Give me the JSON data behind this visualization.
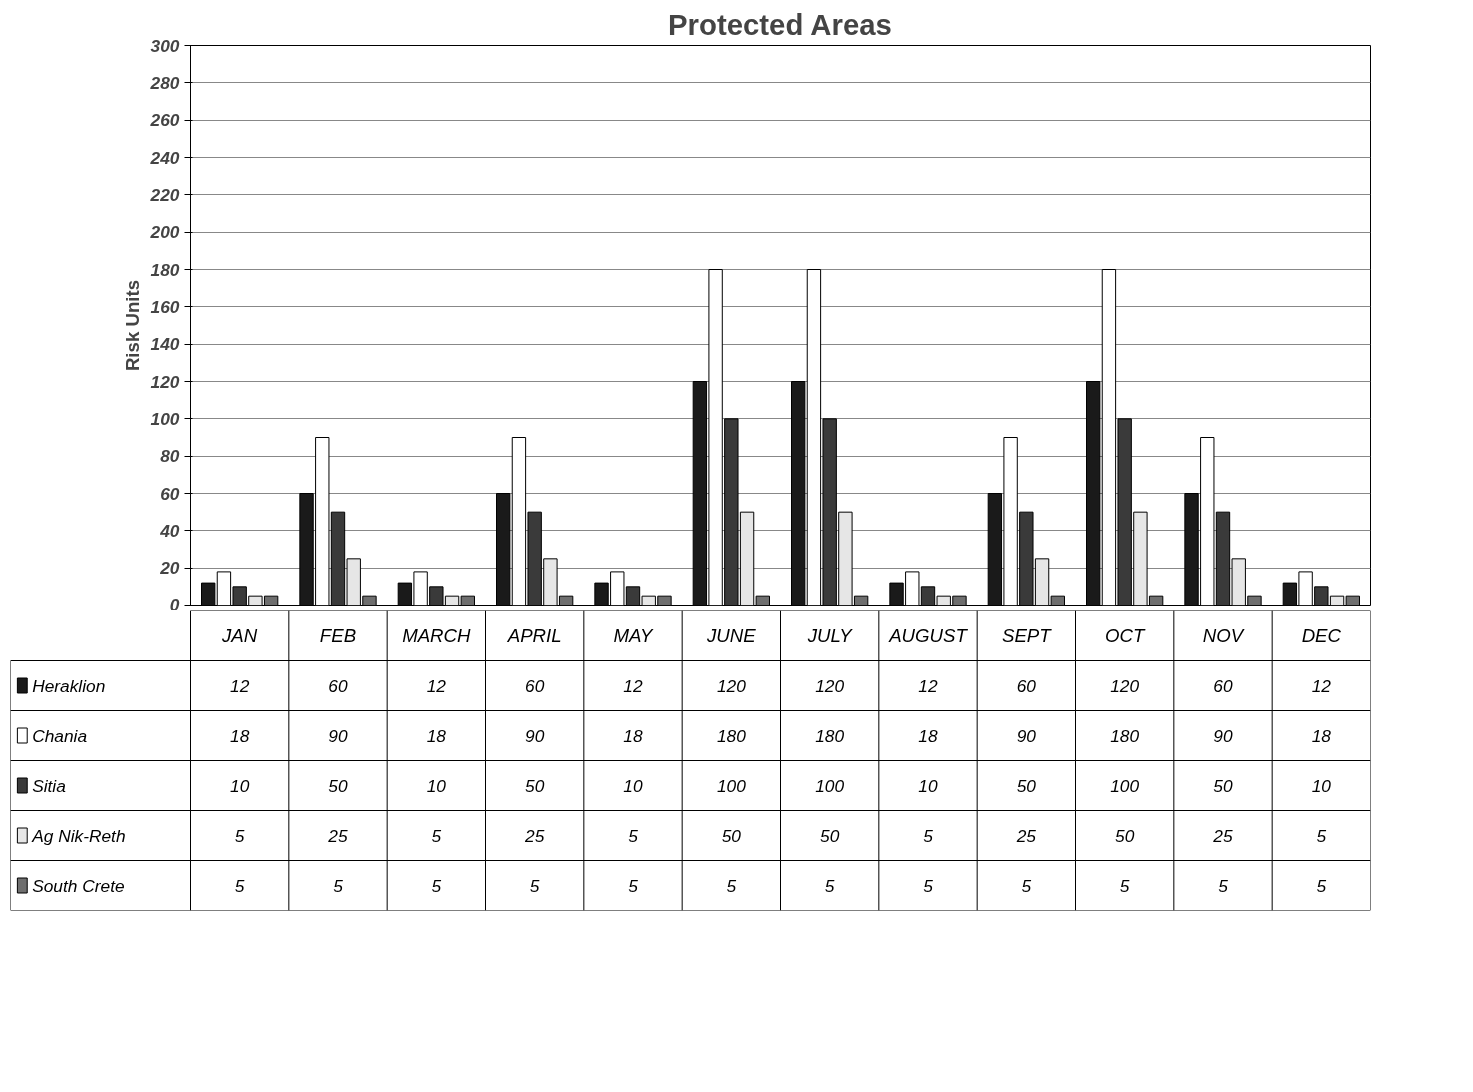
{
  "chart_data": {
    "type": "bar",
    "title": "Protected Areas",
    "ylabel": "Risk Units",
    "categories": [
      "JAN",
      "FEB",
      "MARCH",
      "APRIL",
      "MAY",
      "JUNE",
      "JULY",
      "AUGUST",
      "SEPT",
      "OCT",
      "NOV",
      "DEC"
    ],
    "series": [
      {
        "name": "Heraklion",
        "color": "#1a1a1a",
        "values": [
          12,
          60,
          12,
          60,
          12,
          120,
          120,
          12,
          60,
          120,
          60,
          12
        ]
      },
      {
        "name": "Chania",
        "color": "#ffffff",
        "values": [
          18,
          90,
          18,
          90,
          18,
          180,
          180,
          18,
          90,
          180,
          90,
          18
        ]
      },
      {
        "name": "Sitia",
        "color": "#3a3a3a",
        "values": [
          10,
          50,
          10,
          50,
          10,
          100,
          100,
          10,
          50,
          100,
          50,
          10
        ]
      },
      {
        "name": "Ag Nik-Reth",
        "color": "#e6e6e6",
        "values": [
          5,
          25,
          5,
          25,
          5,
          50,
          50,
          5,
          25,
          50,
          25,
          5
        ]
      },
      {
        "name": "South Crete",
        "color": "#6e6e6e",
        "values": [
          5,
          5,
          5,
          5,
          5,
          5,
          5,
          5,
          5,
          5,
          5,
          5
        ]
      }
    ],
    "ylim": [
      0,
      300
    ],
    "yticks": [
      0,
      20,
      40,
      60,
      80,
      100,
      120,
      140,
      160,
      180,
      200,
      220,
      240,
      260,
      280,
      300
    ],
    "grid": "y",
    "legend": "bottom",
    "data_labels": true
  }
}
